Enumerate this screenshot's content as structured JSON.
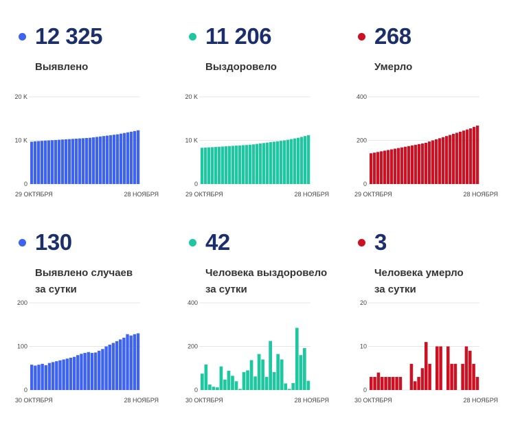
{
  "chart_data": [
    {
      "type": "bar",
      "stat_value": "12 325",
      "label_lines": [
        "Выявлено"
      ],
      "color": "#3d63f0",
      "ylim": [
        0,
        20000
      ],
      "y_ticks": [
        {
          "v": 0,
          "t": "0"
        },
        {
          "v": 10000,
          "t": "10 K"
        },
        {
          "v": 20000,
          "t": "20 K"
        }
      ],
      "x_start": "29 ОКТЯБРЯ",
      "x_end": "28 НОЯБРЯ",
      "values": [
        9700,
        9800,
        9850,
        9900,
        9950,
        10000,
        10050,
        10100,
        10150,
        10200,
        10250,
        10300,
        10350,
        10400,
        10450,
        10500,
        10550,
        10600,
        10700,
        10800,
        10900,
        11000,
        11100,
        11200,
        11300,
        11400,
        11550,
        11700,
        11850,
        12000,
        12150,
        12325
      ]
    },
    {
      "type": "bar",
      "stat_value": "11 206",
      "label_lines": [
        "Выздоровело"
      ],
      "color": "#1dc8a0",
      "ylim": [
        0,
        20000
      ],
      "y_ticks": [
        {
          "v": 0,
          "t": "0"
        },
        {
          "v": 10000,
          "t": "10 K"
        },
        {
          "v": 20000,
          "t": "20 K"
        }
      ],
      "x_start": "29 ОКТЯБРЯ",
      "x_end": "28 НОЯБРЯ",
      "values": [
        8300,
        8350,
        8400,
        8450,
        8500,
        8550,
        8600,
        8650,
        8700,
        8750,
        8800,
        8850,
        8900,
        8950,
        9000,
        9100,
        9200,
        9300,
        9400,
        9500,
        9600,
        9700,
        9800,
        9900,
        10000,
        10150,
        10300,
        10450,
        10600,
        10800,
        11000,
        11206
      ]
    },
    {
      "type": "bar",
      "stat_value": "268",
      "label_lines": [
        "Умерло"
      ],
      "color": "#cc1122",
      "ylim": [
        0,
        400
      ],
      "y_ticks": [
        {
          "v": 0,
          "t": "0"
        },
        {
          "v": 200,
          "t": "200"
        },
        {
          "v": 400,
          "t": "400"
        }
      ],
      "x_start": "29 ОКТЯБРЯ",
      "x_end": "28 НОЯБРЯ",
      "values": [
        141,
        144,
        147,
        150,
        153,
        156,
        159,
        162,
        165,
        168,
        171,
        174,
        177,
        180,
        183,
        186,
        189,
        195,
        200,
        205,
        210,
        215,
        220,
        225,
        230,
        235,
        240,
        245,
        250,
        255,
        262,
        268
      ]
    },
    {
      "type": "bar",
      "stat_value": "130",
      "label_lines": [
        "Выявлено случаев",
        "за сутки"
      ],
      "color": "#3d63f0",
      "ylim": [
        0,
        200
      ],
      "y_ticks": [
        {
          "v": 0,
          "t": "0"
        },
        {
          "v": 100,
          "t": "100"
        },
        {
          "v": 200,
          "t": "200"
        }
      ],
      "x_start": "30 ОКТЯБРЯ",
      "x_end": "28 НОЯБРЯ",
      "values": [
        58,
        56,
        58,
        60,
        57,
        62,
        64,
        66,
        68,
        70,
        72,
        74,
        76,
        80,
        83,
        85,
        87,
        85,
        86,
        90,
        94,
        100,
        104,
        108,
        112,
        116,
        120,
        128,
        125,
        128,
        130
      ]
    },
    {
      "type": "bar",
      "stat_value": "42",
      "label_lines": [
        "Человека выздоровело",
        "за сутки"
      ],
      "color": "#1dc8a0",
      "ylim": [
        0,
        400
      ],
      "y_ticks": [
        {
          "v": 0,
          "t": "0"
        },
        {
          "v": 200,
          "t": "200"
        },
        {
          "v": 400,
          "t": "400"
        }
      ],
      "x_start": "30 ОКТЯБРЯ",
      "x_end": "28 НОЯБРЯ",
      "values": [
        75,
        117,
        25,
        15,
        12,
        108,
        48,
        88,
        65,
        40,
        5,
        82,
        90,
        137,
        62,
        165,
        140,
        60,
        225,
        82,
        165,
        140,
        30,
        5,
        32,
        285,
        160,
        192,
        42
      ]
    },
    {
      "type": "bar",
      "stat_value": "3",
      "label_lines": [
        "Человека умерло",
        "за сутки"
      ],
      "color": "#cc1122",
      "ylim": [
        0,
        20
      ],
      "y_ticks": [
        {
          "v": 0,
          "t": "0"
        },
        {
          "v": 10,
          "t": "10"
        },
        {
          "v": 20,
          "t": "20"
        }
      ],
      "x_start": "30 ОКТЯБРЯ",
      "x_end": "28 НОЯБРЯ",
      "values": [
        3,
        3,
        4,
        3,
        3,
        3,
        3,
        3,
        3,
        0,
        0,
        6,
        2,
        3,
        5,
        11,
        6,
        0,
        10,
        10,
        0,
        10,
        6,
        6,
        0,
        6,
        10,
        9,
        6,
        3
      ]
    }
  ]
}
